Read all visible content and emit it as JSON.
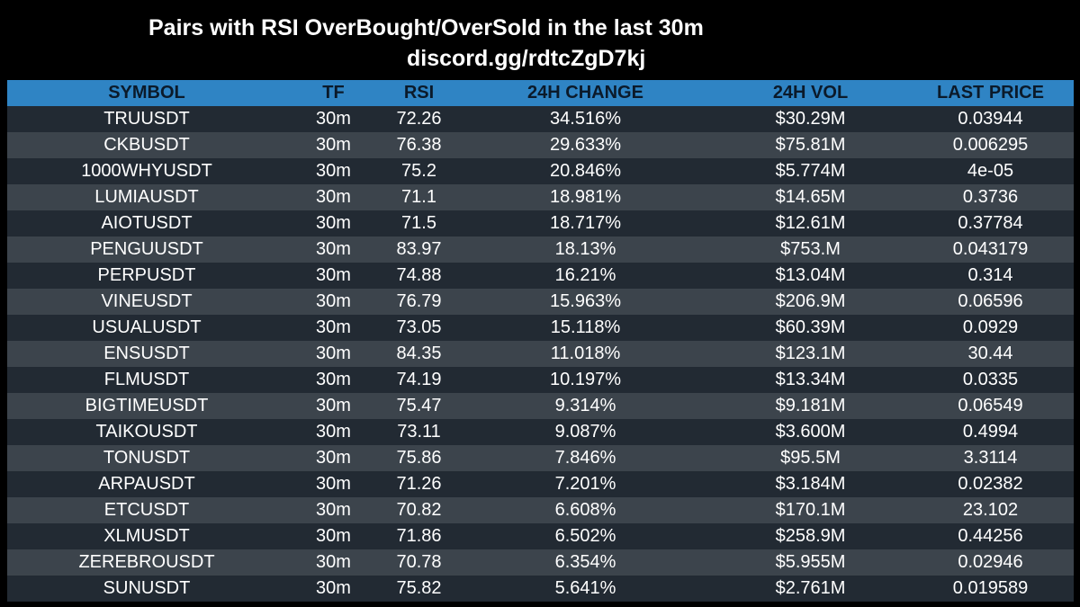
{
  "header": {
    "title": "Pairs with RSI OverBought/OverSold in the last 30m",
    "subtitle": "discord.gg/rdtcZgD7kj"
  },
  "table": {
    "columns": [
      "SYMBOL",
      "TF",
      "RSI",
      "24H CHANGE",
      "24H VOL",
      "LAST PRICE"
    ],
    "rows": [
      [
        "TRUUSDT",
        "30m",
        "72.26",
        "34.516%",
        "$30.29M",
        "0.03944"
      ],
      [
        "CKBUSDT",
        "30m",
        "76.38",
        "29.633%",
        "$75.81M",
        "0.006295"
      ],
      [
        "1000WHYUSDT",
        "30m",
        "75.2",
        "20.846%",
        "$5.774M",
        "4e-05"
      ],
      [
        "LUMIAUSDT",
        "30m",
        "71.1",
        "18.981%",
        "$14.65M",
        "0.3736"
      ],
      [
        "AIOTUSDT",
        "30m",
        "71.5",
        "18.717%",
        "$12.61M",
        "0.37784"
      ],
      [
        "PENGUUSDT",
        "30m",
        "83.97",
        "18.13%",
        "$753.M",
        "0.043179"
      ],
      [
        "PERPUSDT",
        "30m",
        "74.88",
        "16.21%",
        "$13.04M",
        "0.314"
      ],
      [
        "VINEUSDT",
        "30m",
        "76.79",
        "15.963%",
        "$206.9M",
        "0.06596"
      ],
      [
        "USUALUSDT",
        "30m",
        "73.05",
        "15.118%",
        "$60.39M",
        "0.0929"
      ],
      [
        "ENSUSDT",
        "30m",
        "84.35",
        "11.018%",
        "$123.1M",
        "30.44"
      ],
      [
        "FLMUSDT",
        "30m",
        "74.19",
        "10.197%",
        "$13.34M",
        "0.0335"
      ],
      [
        "BIGTIMEUSDT",
        "30m",
        "75.47",
        "9.314%",
        "$9.181M",
        "0.06549"
      ],
      [
        "TAIKOUSDT",
        "30m",
        "73.11",
        "9.087%",
        "$3.600M",
        "0.4994"
      ],
      [
        "TONUSDT",
        "30m",
        "75.86",
        "7.846%",
        "$95.5M",
        "3.3114"
      ],
      [
        "ARPAUSDT",
        "30m",
        "71.26",
        "7.201%",
        "$3.184M",
        "0.02382"
      ],
      [
        "ETCUSDT",
        "30m",
        "70.82",
        "6.608%",
        "$170.1M",
        "23.102"
      ],
      [
        "XLMUSDT",
        "30m",
        "71.86",
        "6.502%",
        "$258.9M",
        "0.44256"
      ],
      [
        "ZEREBROUSDT",
        "30m",
        "70.78",
        "6.354%",
        "$5.955M",
        "0.02946"
      ],
      [
        "SUNUSDT",
        "30m",
        "75.82",
        "5.641%",
        "$2.761M",
        "0.019589"
      ]
    ]
  },
  "colors": {
    "background": "#000000",
    "header_row": "#2f84c4",
    "row_dark": "#222a33",
    "row_light": "#3c444c",
    "text": "#ffffff"
  }
}
